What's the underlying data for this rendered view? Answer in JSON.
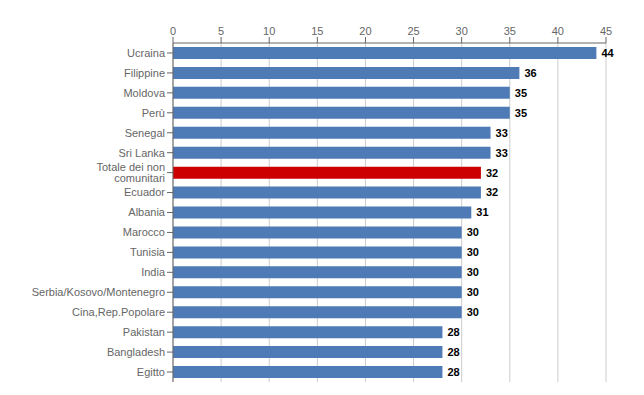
{
  "chart_data": {
    "type": "bar",
    "orientation": "horizontal",
    "categories": [
      "Egitto",
      "Bangladesh",
      "Pakistan",
      "Cina,Rep.Popolare",
      "Serbia/Kosovo/Montenegro",
      "India",
      "Tunisia",
      "Marocco",
      "Albania",
      "Ecuador",
      "Totale dei non comunitari",
      "Sri Lanka",
      "Senegal",
      "Perù",
      "Moldova",
      "Filippine",
      "Ucraina"
    ],
    "values": [
      28,
      28,
      28,
      30,
      30,
      30,
      30,
      30,
      31,
      32,
      32,
      33,
      33,
      35,
      35,
      36,
      44
    ],
    "colors": [
      "#4e7ab5",
      "#4e7ab5",
      "#4e7ab5",
      "#4e7ab5",
      "#4e7ab5",
      "#4e7ab5",
      "#4e7ab5",
      "#4e7ab5",
      "#4e7ab5",
      "#4e7ab5",
      "#cc0000",
      "#4e7ab5",
      "#4e7ab5",
      "#4e7ab5",
      "#4e7ab5",
      "#4e7ab5",
      "#4e7ab5"
    ],
    "xlim": [
      0,
      45
    ],
    "xticks": [
      0,
      5,
      10,
      15,
      20,
      25,
      30,
      35,
      40,
      45
    ],
    "grid": true,
    "data_labels": true
  }
}
